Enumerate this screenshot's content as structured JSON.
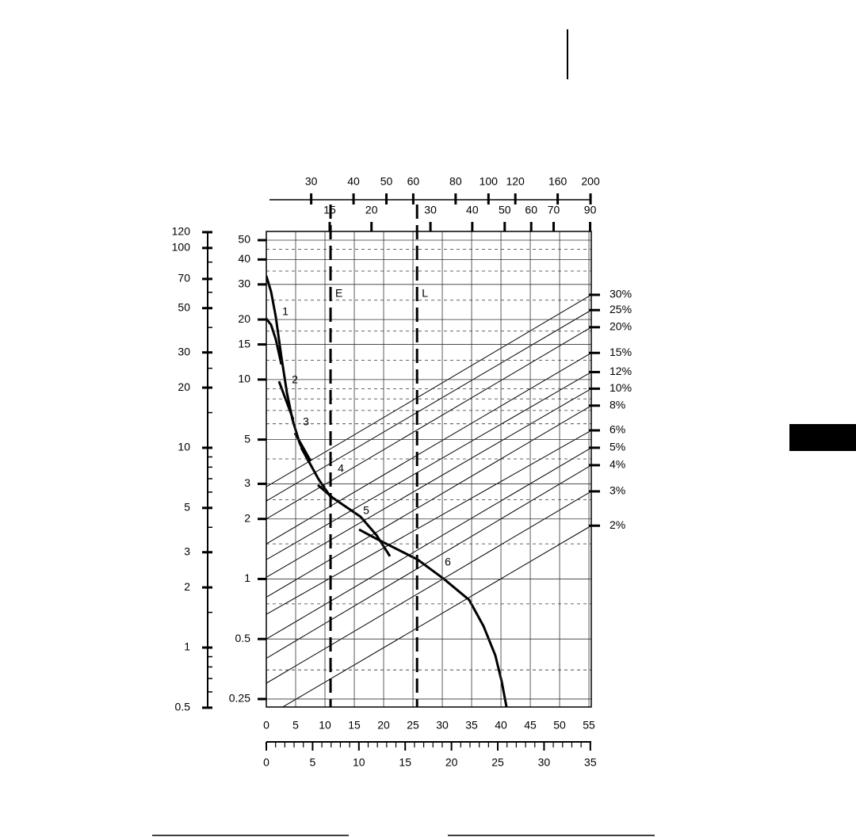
{
  "chart_data": {
    "type": "line",
    "log_y": true,
    "grid": true,
    "line_color": "#000000",
    "xlim": [
      0,
      55.4
    ],
    "xticks": [
      0,
      5,
      10,
      15,
      20,
      25,
      30,
      35,
      40,
      45,
      50,
      55
    ],
    "ylim": [
      0.228,
      55.3
    ],
    "yticks": [
      50,
      40,
      30,
      20,
      15,
      10,
      5,
      3,
      2,
      1,
      0.5,
      0.25
    ],
    "yminor": [
      45,
      35,
      25,
      17.5,
      12.5,
      9,
      8,
      7,
      6,
      4,
      2.5,
      1.5,
      0.75,
      0.35
    ],
    "y2lim": [
      0.504,
      121
    ],
    "y2ticks": [
      120,
      100,
      70,
      50,
      30,
      20,
      10,
      5,
      3,
      2,
      1,
      0.5
    ],
    "y2minor": [
      85,
      60,
      40,
      25,
      15,
      9,
      8,
      7,
      6,
      4,
      1.5,
      0.9,
      0.8,
      0.7,
      0.6
    ],
    "x2lim": [
      0,
      35.1
    ],
    "x2ticks": [
      0,
      5,
      10,
      15,
      20,
      25,
      30,
      35
    ],
    "x2minor": [
      1,
      2,
      3,
      4,
      6,
      7,
      8,
      9,
      11,
      12,
      13,
      14,
      16,
      17,
      18,
      19,
      21,
      22,
      23,
      24,
      26,
      27,
      28,
      29,
      31,
      32,
      33,
      34
    ],
    "x3lim": [
      22.6,
      201
    ],
    "x3ticks": [
      30,
      40,
      50,
      60,
      80,
      100,
      120,
      160,
      200
    ],
    "x4lim": [
      9.7,
      90.7
    ],
    "x4ticks": [
      15,
      20,
      30,
      40,
      50,
      60,
      70,
      90
    ],
    "slope_x": [
      0,
      55.4
    ],
    "slope_lines": [
      {
        "name": "30%",
        "values": [
          2.9,
          26.6
        ]
      },
      {
        "name": "25%",
        "values": [
          2.46,
          22.3
        ]
      },
      {
        "name": "20%",
        "values": [
          2.0,
          18.3
        ]
      },
      {
        "name": "15%",
        "values": [
          1.5,
          13.6
        ]
      },
      {
        "name": "12%",
        "values": [
          1.25,
          10.9
        ]
      },
      {
        "name": "10%",
        "values": [
          1.02,
          9.0
        ]
      },
      {
        "name": "8%",
        "values": [
          0.81,
          7.4
        ]
      },
      {
        "name": "6%",
        "values": [
          0.665,
          5.56
        ]
      },
      {
        "name": "5%",
        "values": [
          0.5,
          4.55
        ]
      },
      {
        "name": "4%",
        "values": [
          0.4,
          3.72
        ]
      },
      {
        "name": "3%",
        "values": [
          0.3,
          2.75
        ]
      },
      {
        "name": "2%",
        "values": [
          0.204,
          1.85
        ]
      }
    ],
    "markers": [
      {
        "name": "E",
        "x": 10.95
      },
      {
        "name": "L",
        "x": 25.7
      }
    ],
    "series": [
      {
        "name": "1",
        "x": [
          0,
          0.81,
          1.62,
          2.57,
          3.51,
          4.46,
          5.68,
          7.16
        ],
        "values": [
          33.1,
          27.6,
          20.6,
          13.0,
          8.6,
          6.3,
          4.8,
          3.9
        ]
      },
      {
        "x": [
          0,
          0.81,
          1.62,
          2.57
        ],
        "values": [
          20.2,
          18.8,
          15.9,
          11.9
        ]
      },
      {
        "name": "2",
        "x": [
          2.16,
          4.59
        ],
        "values": [
          9.8,
          6.3
        ]
      },
      {
        "name": "3",
        "x": [
          4.86,
          7.57
        ],
        "values": [
          5.4,
          3.9
        ]
      },
      {
        "name": "4",
        "x": [
          5.95,
          8.92,
          11.08
        ],
        "values": [
          4.55,
          3.16,
          2.55
        ]
      },
      {
        "name": "5",
        "x": [
          8.78,
          11.35,
          16.08,
          18.78,
          21.08
        ],
        "values": [
          2.96,
          2.55,
          2.05,
          1.66,
          1.3
        ]
      },
      {
        "name": "6",
        "x": [
          15.81,
          18.78,
          25.81,
          30.27,
          34.59,
          37.03,
          39.05,
          40.14,
          40.95
        ],
        "values": [
          1.77,
          1.59,
          1.25,
          1.0,
          0.785,
          0.58,
          0.413,
          0.305,
          0.228
        ]
      }
    ]
  }
}
